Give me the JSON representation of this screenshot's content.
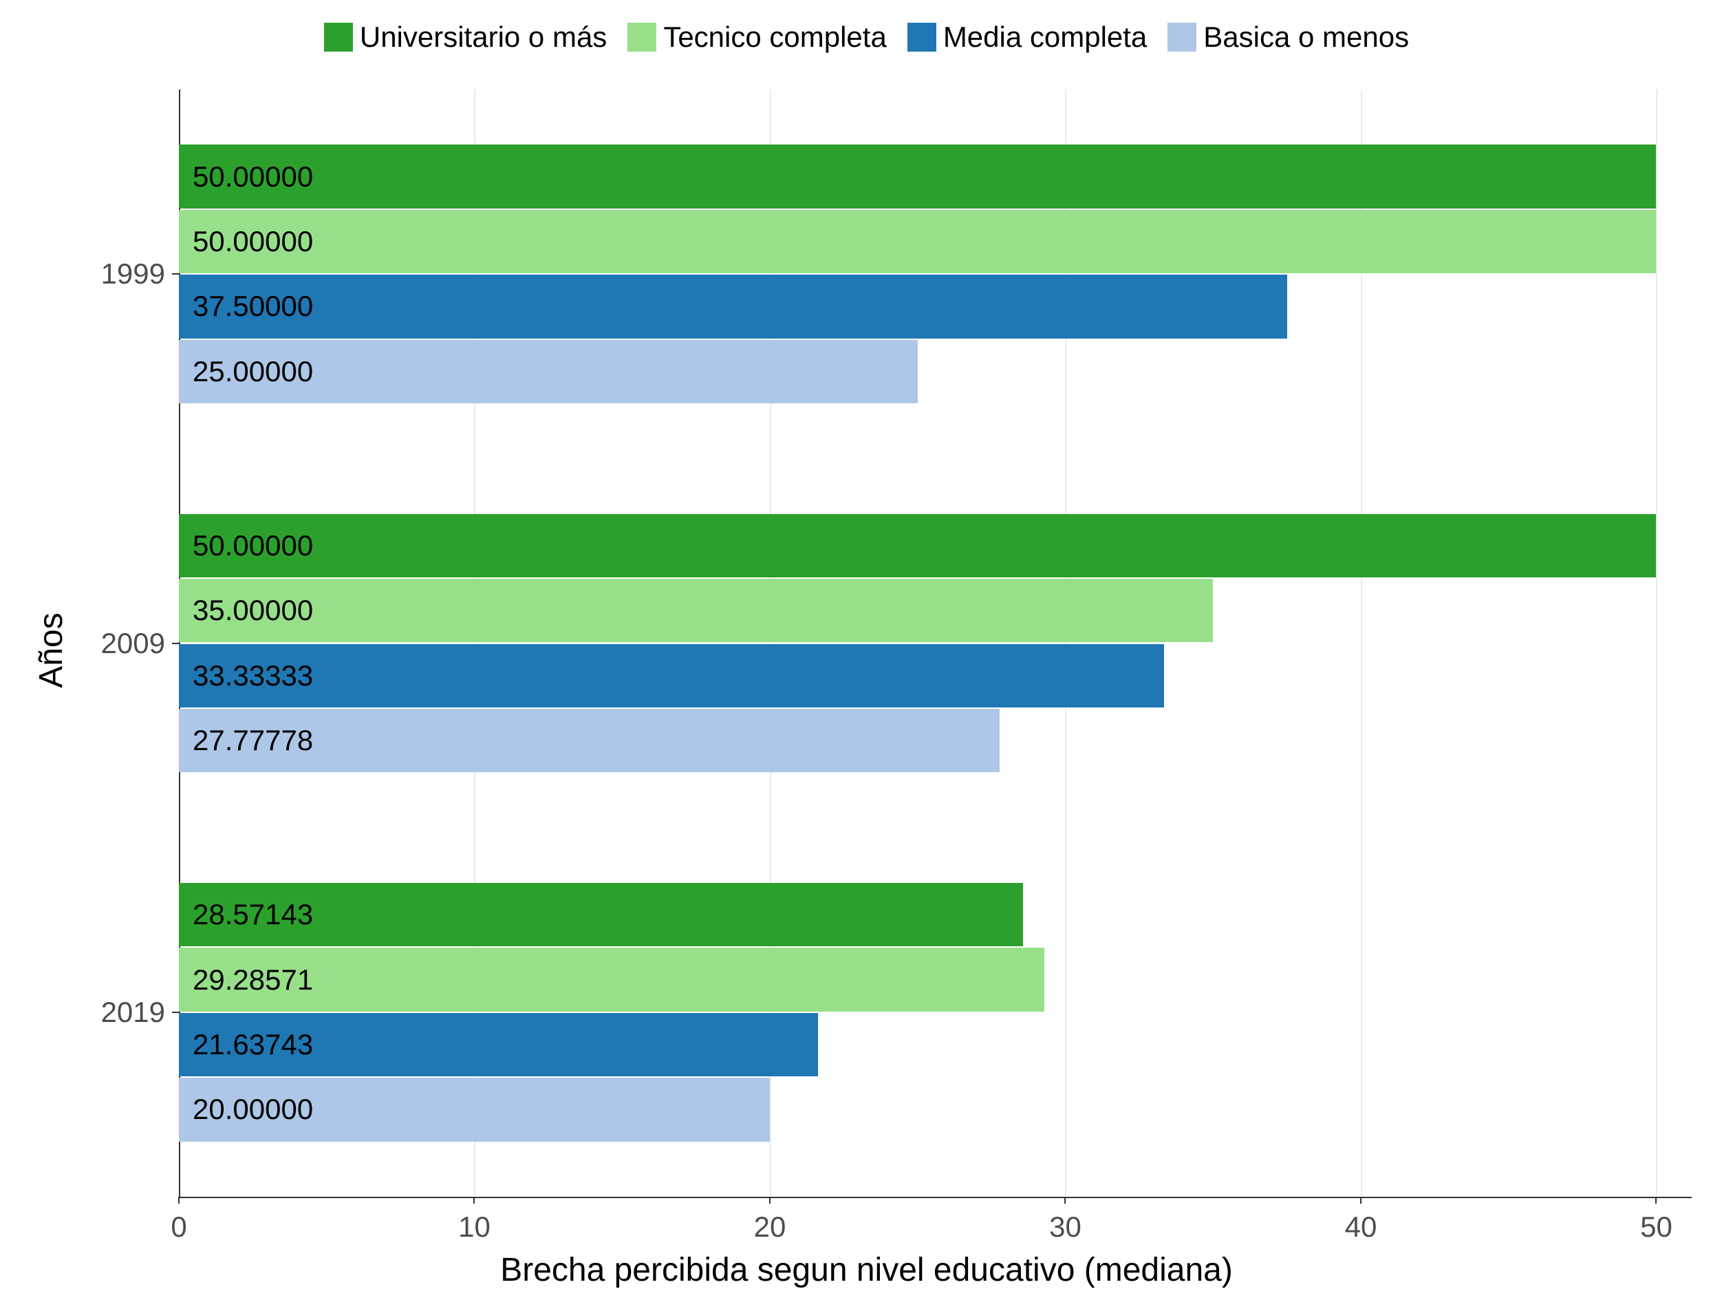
{
  "chart": {
    "type": "grouped-horizontal-bar",
    "background_color": "#ffffff",
    "grid_color": "#ebebeb",
    "text_color": "#000000",
    "tick_color": "#4d4d4d",
    "axis_line_color": "#333333",
    "x_axis": {
      "title": "Brecha percibida segun nivel educativo (mediana)",
      "min": 0,
      "max": 50,
      "tick_step": 10,
      "ticks": [
        0,
        10,
        20,
        30,
        40,
        50
      ],
      "tick_labels": [
        "0",
        "10",
        "20",
        "30",
        "40",
        "50"
      ],
      "title_fontsize": 48,
      "label_fontsize": 42
    },
    "y_axis": {
      "title": "Años",
      "categories": [
        "1999",
        "2009",
        "2019"
      ],
      "title_fontsize": 48,
      "label_fontsize": 42
    },
    "legend": {
      "position": "top",
      "fontsize": 42,
      "items": [
        {
          "key": "univ",
          "label": "Universitario o más",
          "color": "#2ca02c"
        },
        {
          "key": "tecnico",
          "label": "Tecnico completa",
          "color": "#98df8a"
        },
        {
          "key": "media",
          "label": "Media completa",
          "color": "#1f77b4"
        },
        {
          "key": "basica",
          "label": "Basica o menos",
          "color": "#aec7e8"
        }
      ]
    },
    "series_order": [
      "univ",
      "tecnico",
      "media",
      "basica"
    ],
    "bar_label_fontsize": 42,
    "bar_label_color": "#000000",
    "group_padding": 0.15,
    "data": {
      "1999": {
        "univ": {
          "value": 50.0,
          "label": "50.00000"
        },
        "tecnico": {
          "value": 50.0,
          "label": "50.00000"
        },
        "media": {
          "value": 37.5,
          "label": "37.50000"
        },
        "basica": {
          "value": 25.0,
          "label": "25.00000"
        }
      },
      "2009": {
        "univ": {
          "value": 50.0,
          "label": "50.00000"
        },
        "tecnico": {
          "value": 35.0,
          "label": "35.00000"
        },
        "media": {
          "value": 33.33333,
          "label": "33.33333"
        },
        "basica": {
          "value": 27.77778,
          "label": "27.77778"
        }
      },
      "2019": {
        "univ": {
          "value": 28.57143,
          "label": "28.57143"
        },
        "tecnico": {
          "value": 29.28571,
          "label": "29.28571"
        },
        "media": {
          "value": 21.63743,
          "label": "21.63743"
        },
        "basica": {
          "value": 20.0,
          "label": "20.00000"
        }
      }
    }
  }
}
